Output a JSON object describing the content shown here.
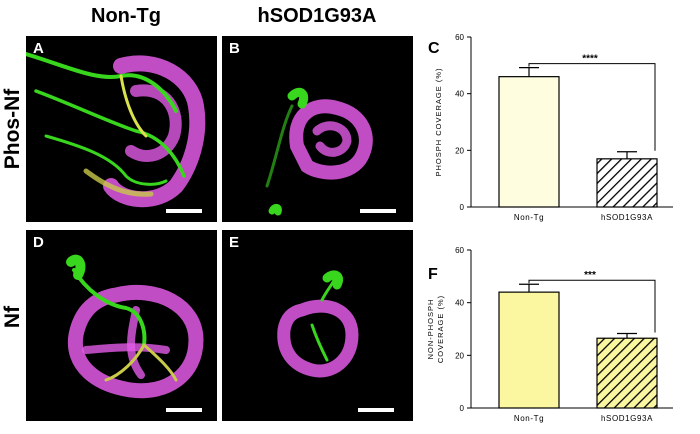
{
  "columns": {
    "left": "Non-Tg",
    "right": "hSOD1G93A"
  },
  "rows": {
    "top": "Phos-Nf",
    "bottom": "Nf"
  },
  "panels": {
    "A": "A",
    "B": "B",
    "C": "C",
    "D": "D",
    "E": "E",
    "F": "F"
  },
  "colors": {
    "green": "#39d61e",
    "magenta": "#e35be8",
    "background": "#000000",
    "barC": "#fffde0",
    "barF": "#fbf6a0"
  },
  "chart_data": [
    {
      "type": "bar",
      "panel": "C",
      "categories": [
        "Non-Tg",
        "hSOD1G93A"
      ],
      "values": [
        46,
        17
      ],
      "errors": [
        3.2,
        2.5
      ],
      "hatched": [
        false,
        true
      ],
      "ylabel": "PHOSPH COVERAGE (%)",
      "ylim": [
        0,
        60
      ],
      "yticks": [
        "0",
        "20",
        "40",
        "60"
      ],
      "significance": "****"
    },
    {
      "type": "bar",
      "panel": "F",
      "categories": [
        "Non-Tg",
        "hSOD1G93A"
      ],
      "values": [
        44,
        26.5
      ],
      "errors": [
        3.0,
        1.8
      ],
      "hatched": [
        false,
        true
      ],
      "ylabel_lines": [
        "NON-PHOSPH",
        "COVERAGE (%)"
      ],
      "ylim": [
        0,
        60
      ],
      "yticks": [
        "0",
        "20",
        "40",
        "60"
      ],
      "significance": "***"
    }
  ]
}
